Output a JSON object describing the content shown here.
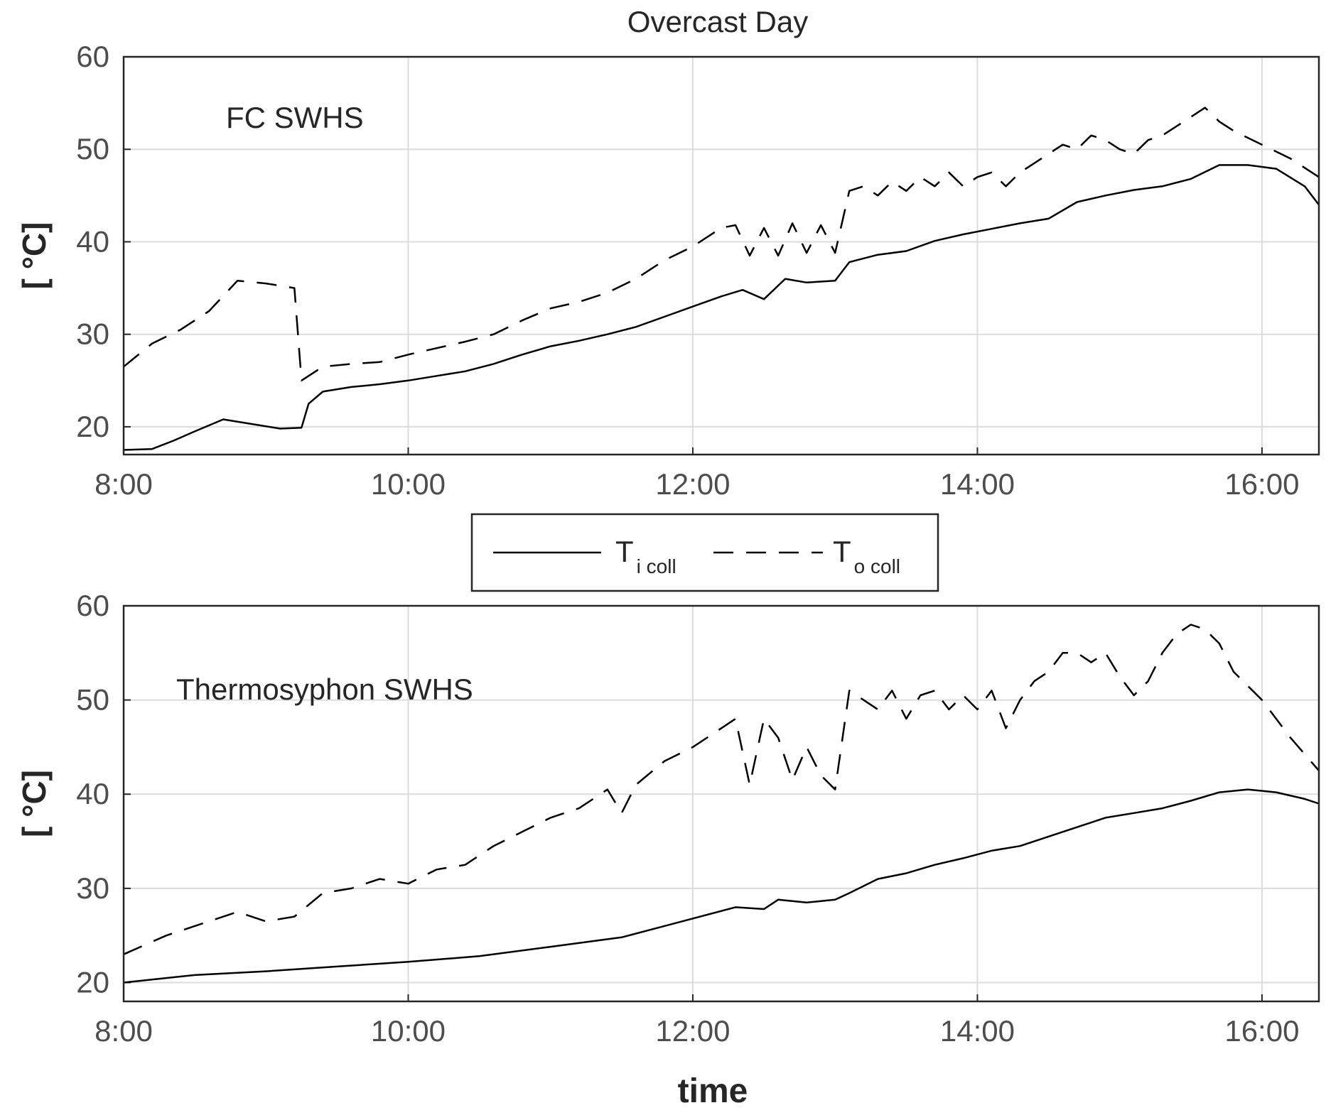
{
  "figure_title": "Overcast Day",
  "xlabel": "time",
  "legend": {
    "entries": [
      {
        "name": "T",
        "sub": "i coll",
        "style": "solid"
      },
      {
        "name": "T",
        "sub": "o coll",
        "style": "dashed"
      }
    ]
  },
  "colors": {
    "line": "#000000",
    "grid": "#dcdcdc",
    "axis": "#262626",
    "tick_text": "#4d4d4d"
  },
  "chart_data": [
    {
      "type": "line",
      "title": "FC SWHS",
      "xlabel": "",
      "ylabel": "[ °C]",
      "xlim": [
        8.0,
        16.4
      ],
      "ylim": [
        17,
        60
      ],
      "xticks": [
        8,
        10,
        12,
        14,
        16
      ],
      "xtick_labels": [
        "8:00",
        "10:00",
        "12:00",
        "14:00",
        "16:00"
      ],
      "yticks": [
        20,
        30,
        40,
        50,
        60
      ],
      "ytick_labels": [
        "20",
        "30",
        "40",
        "50",
        "60"
      ],
      "grid": true,
      "series": [
        {
          "name": "T i coll",
          "style": "solid",
          "x": [
            8.0,
            8.2,
            8.35,
            8.5,
            8.7,
            8.9,
            9.1,
            9.25,
            9.3,
            9.4,
            9.6,
            9.8,
            10.0,
            10.2,
            10.4,
            10.6,
            10.8,
            11.0,
            11.2,
            11.4,
            11.6,
            11.8,
            12.0,
            12.2,
            12.35,
            12.5,
            12.65,
            12.8,
            13.0,
            13.1,
            13.3,
            13.5,
            13.7,
            13.9,
            14.1,
            14.3,
            14.5,
            14.7,
            14.9,
            15.1,
            15.3,
            15.5,
            15.7,
            15.9,
            16.1,
            16.3,
            16.4
          ],
          "y": [
            17.5,
            17.6,
            18.5,
            19.5,
            20.8,
            20.3,
            19.8,
            19.9,
            22.5,
            23.8,
            24.3,
            24.6,
            25.0,
            25.5,
            26.0,
            26.8,
            27.8,
            28.7,
            29.3,
            30.0,
            30.8,
            31.9,
            33.0,
            34.1,
            34.8,
            33.8,
            36.0,
            35.6,
            35.8,
            37.8,
            38.6,
            39.0,
            40.1,
            40.8,
            41.4,
            42.0,
            42.5,
            44.3,
            45.0,
            45.6,
            46.0,
            46.8,
            48.3,
            48.3,
            47.9,
            46.0,
            44.0
          ]
        },
        {
          "name": "T o coll",
          "style": "dashed",
          "x": [
            8.0,
            8.2,
            8.4,
            8.6,
            8.8,
            9.0,
            9.2,
            9.25,
            9.3,
            9.4,
            9.6,
            9.8,
            10.0,
            10.2,
            10.4,
            10.6,
            10.8,
            11.0,
            11.2,
            11.4,
            11.6,
            11.8,
            12.0,
            12.2,
            12.3,
            12.4,
            12.5,
            12.6,
            12.7,
            12.8,
            12.9,
            13.0,
            13.1,
            13.2,
            13.3,
            13.4,
            13.5,
            13.6,
            13.7,
            13.8,
            13.9,
            14.0,
            14.1,
            14.2,
            14.3,
            14.4,
            14.5,
            14.6,
            14.7,
            14.8,
            14.9,
            15.0,
            15.1,
            15.2,
            15.3,
            15.4,
            15.5,
            15.6,
            15.7,
            15.8,
            16.0,
            16.2,
            16.4
          ],
          "y": [
            26.5,
            29.0,
            30.5,
            32.5,
            35.8,
            35.5,
            35.0,
            25.0,
            25.5,
            26.5,
            26.8,
            27.0,
            27.8,
            28.5,
            29.2,
            30.0,
            31.5,
            32.8,
            33.5,
            34.5,
            36.0,
            38.0,
            39.5,
            41.5,
            41.8,
            38.5,
            41.5,
            38.5,
            42.0,
            38.8,
            41.8,
            38.8,
            45.5,
            46.0,
            45.0,
            46.5,
            45.5,
            47.0,
            46.0,
            47.5,
            46.0,
            47.0,
            47.5,
            46.0,
            47.5,
            48.5,
            49.5,
            50.5,
            50.0,
            51.5,
            51.0,
            50.0,
            49.5,
            51.0,
            51.5,
            52.5,
            53.5,
            54.5,
            53.0,
            52.0,
            50.5,
            49.0,
            47.0
          ]
        }
      ]
    },
    {
      "type": "line",
      "title": "Thermosyphon SWHS",
      "xlabel": "time",
      "ylabel": "[ °C]",
      "xlim": [
        8.0,
        16.4
      ],
      "ylim": [
        18,
        60
      ],
      "xticks": [
        8,
        10,
        12,
        14,
        16
      ],
      "xtick_labels": [
        "8:00",
        "10:00",
        "12:00",
        "14:00",
        "16:00"
      ],
      "yticks": [
        20,
        30,
        40,
        50,
        60
      ],
      "ytick_labels": [
        "20",
        "30",
        "40",
        "50",
        "60"
      ],
      "grid": true,
      "series": [
        {
          "name": "T i coll",
          "style": "solid",
          "x": [
            8.0,
            8.5,
            9.0,
            9.5,
            10.0,
            10.5,
            11.0,
            11.5,
            11.8,
            12.0,
            12.3,
            12.5,
            12.6,
            12.8,
            13.0,
            13.1,
            13.3,
            13.5,
            13.7,
            13.9,
            14.1,
            14.3,
            14.5,
            14.7,
            14.9,
            15.1,
            15.3,
            15.5,
            15.7,
            15.9,
            16.1,
            16.3,
            16.4
          ],
          "y": [
            20.0,
            20.8,
            21.2,
            21.7,
            22.2,
            22.8,
            23.8,
            24.8,
            26.0,
            26.8,
            28.0,
            27.8,
            28.8,
            28.5,
            28.8,
            29.5,
            31.0,
            31.6,
            32.5,
            33.2,
            34.0,
            34.5,
            35.5,
            36.5,
            37.5,
            38.0,
            38.5,
            39.3,
            40.2,
            40.5,
            40.2,
            39.5,
            39.0
          ]
        },
        {
          "name": "T o coll",
          "style": "dashed",
          "x": [
            8.0,
            8.3,
            8.6,
            8.8,
            9.0,
            9.2,
            9.4,
            9.6,
            9.8,
            10.0,
            10.2,
            10.4,
            10.6,
            10.8,
            11.0,
            11.2,
            11.4,
            11.5,
            11.6,
            11.8,
            12.0,
            12.2,
            12.3,
            12.4,
            12.5,
            12.6,
            12.7,
            12.8,
            12.9,
            13.0,
            13.1,
            13.2,
            13.3,
            13.4,
            13.5,
            13.6,
            13.7,
            13.8,
            13.9,
            14.0,
            14.1,
            14.2,
            14.3,
            14.4,
            14.5,
            14.6,
            14.7,
            14.8,
            14.9,
            15.0,
            15.1,
            15.2,
            15.3,
            15.4,
            15.5,
            15.6,
            15.7,
            15.8,
            16.0,
            16.2,
            16.4
          ],
          "y": [
            23.0,
            25.0,
            26.5,
            27.5,
            26.5,
            27.0,
            29.5,
            30.0,
            31.0,
            30.5,
            32.0,
            32.5,
            34.5,
            36.0,
            37.5,
            38.5,
            40.5,
            38.0,
            41.0,
            43.5,
            45.0,
            47.0,
            48.0,
            41.0,
            48.0,
            46.0,
            41.5,
            45.0,
            42.0,
            40.5,
            51.0,
            50.0,
            49.0,
            51.0,
            48.0,
            50.5,
            51.0,
            49.0,
            50.5,
            49.0,
            51.0,
            47.0,
            50.0,
            52.0,
            53.0,
            55.0,
            55.0,
            54.0,
            55.0,
            52.5,
            50.5,
            52.0,
            55.0,
            57.0,
            58.0,
            57.5,
            56.0,
            53.0,
            50.0,
            46.0,
            42.5
          ]
        }
      ]
    }
  ]
}
